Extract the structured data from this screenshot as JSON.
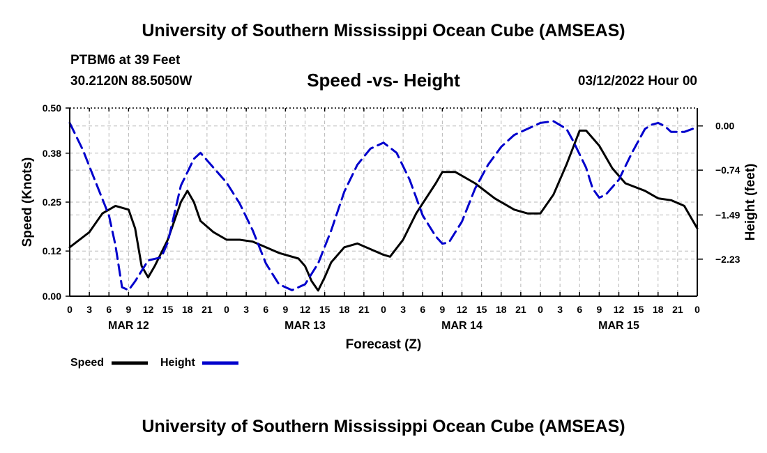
{
  "header": {
    "title": "University of Southern Mississippi Ocean Cube (AMSEAS)",
    "station": "PTBM6 at 39 Feet",
    "coords": "30.2120N  88.5050W",
    "subtitle": "Speed -vs- Height",
    "datetime": "03/12/2022 Hour 00"
  },
  "footer": {
    "title": "University of Southern Mississippi Ocean Cube (AMSEAS)"
  },
  "chart_data": {
    "type": "line",
    "title": "Speed -vs- Height",
    "xlabel": "Forecast (Z)",
    "ylabel_left": "Speed (Knots)",
    "ylabel_right": "Height (feet)",
    "x_unit": "forecast hour",
    "xlim": [
      0,
      96
    ],
    "x_ticks": [
      0,
      3,
      6,
      9,
      12,
      15,
      18,
      21,
      24,
      27,
      30,
      33,
      36,
      39,
      42,
      45,
      48,
      51,
      54,
      57,
      60,
      63,
      66,
      69,
      72,
      75,
      78,
      81,
      84,
      87,
      90,
      93,
      96
    ],
    "x_tick_labels": [
      "0",
      "3",
      "6",
      "9",
      "12",
      "15",
      "18",
      "21",
      "0",
      "3",
      "6",
      "9",
      "12",
      "15",
      "18",
      "21",
      "0",
      "3",
      "6",
      "9",
      "12",
      "15",
      "18",
      "21",
      "0",
      "3",
      "6",
      "9",
      "12",
      "15",
      "18",
      "21",
      "0"
    ],
    "day_labels": [
      {
        "label": "MAR 12",
        "hour": 9
      },
      {
        "label": "MAR 13",
        "hour": 36
      },
      {
        "label": "MAR 14",
        "hour": 60
      },
      {
        "label": "MAR 15",
        "hour": 84
      }
    ],
    "y_left": {
      "lim": [
        0,
        0.5
      ],
      "ticks": [
        0,
        0.12,
        0.25,
        0.38,
        0.5
      ],
      "tick_labels": [
        "0.00",
        "0.12",
        "0.25",
        "0.38",
        "0.50"
      ]
    },
    "y_right": {
      "lim": [
        -2.85,
        0.3
      ],
      "ticks": [
        0,
        -0.74,
        -1.49,
        -2.23
      ],
      "tick_labels": [
        "0.00",
        "−0.74",
        "−1.49",
        "−2.23"
      ]
    },
    "grid": true,
    "legend_position": "bottom-left",
    "series": [
      {
        "name": "Speed",
        "axis": "left",
        "color": "#000000",
        "style": "solid",
        "points": [
          [
            0,
            0.13
          ],
          [
            3,
            0.17
          ],
          [
            5,
            0.22
          ],
          [
            7,
            0.24
          ],
          [
            9,
            0.23
          ],
          [
            10,
            0.18
          ],
          [
            11,
            0.08
          ],
          [
            12,
            0.05
          ],
          [
            13,
            0.08
          ],
          [
            15,
            0.15
          ],
          [
            17,
            0.25
          ],
          [
            18,
            0.28
          ],
          [
            19,
            0.25
          ],
          [
            20,
            0.2
          ],
          [
            22,
            0.17
          ],
          [
            24,
            0.15
          ],
          [
            26,
            0.15
          ],
          [
            28,
            0.145
          ],
          [
            30,
            0.13
          ],
          [
            32,
            0.115
          ],
          [
            35,
            0.1
          ],
          [
            36,
            0.08
          ],
          [
            37,
            0.04
          ],
          [
            38,
            0.015
          ],
          [
            39,
            0.05
          ],
          [
            40,
            0.09
          ],
          [
            42,
            0.13
          ],
          [
            44,
            0.14
          ],
          [
            46,
            0.125
          ],
          [
            48,
            0.11
          ],
          [
            49,
            0.105
          ],
          [
            51,
            0.15
          ],
          [
            53,
            0.22
          ],
          [
            56,
            0.3
          ],
          [
            57,
            0.33
          ],
          [
            59,
            0.33
          ],
          [
            62,
            0.3
          ],
          [
            65,
            0.26
          ],
          [
            68,
            0.23
          ],
          [
            70,
            0.22
          ],
          [
            72,
            0.22
          ],
          [
            74,
            0.27
          ],
          [
            76,
            0.35
          ],
          [
            78,
            0.44
          ],
          [
            79,
            0.44
          ],
          [
            81,
            0.4
          ],
          [
            83,
            0.34
          ],
          [
            85,
            0.3
          ],
          [
            88,
            0.28
          ],
          [
            90,
            0.26
          ],
          [
            92,
            0.255
          ],
          [
            94,
            0.24
          ],
          [
            96,
            0.18
          ]
        ]
      },
      {
        "name": "Height",
        "axis": "right",
        "color": "#0000cc",
        "style": "dashed",
        "points": [
          [
            0,
            0.05
          ],
          [
            2,
            -0.4
          ],
          [
            4,
            -0.95
          ],
          [
            6,
            -1.5
          ],
          [
            7,
            -2.0
          ],
          [
            8,
            -2.7
          ],
          [
            9,
            -2.75
          ],
          [
            10,
            -2.6
          ],
          [
            12,
            -2.25
          ],
          [
            14,
            -2.2
          ],
          [
            15,
            -1.95
          ],
          [
            17,
            -1.0
          ],
          [
            19,
            -0.55
          ],
          [
            20,
            -0.45
          ],
          [
            22,
            -0.7
          ],
          [
            24,
            -0.95
          ],
          [
            26,
            -1.3
          ],
          [
            28,
            -1.75
          ],
          [
            30,
            -2.3
          ],
          [
            32,
            -2.65
          ],
          [
            34,
            -2.75
          ],
          [
            36,
            -2.65
          ],
          [
            38,
            -2.3
          ],
          [
            40,
            -1.75
          ],
          [
            42,
            -1.1
          ],
          [
            44,
            -0.65
          ],
          [
            46,
            -0.38
          ],
          [
            48,
            -0.28
          ],
          [
            50,
            -0.45
          ],
          [
            52,
            -0.9
          ],
          [
            54,
            -1.5
          ],
          [
            56,
            -1.85
          ],
          [
            57,
            -1.97
          ],
          [
            58,
            -1.95
          ],
          [
            60,
            -1.6
          ],
          [
            62,
            -1.05
          ],
          [
            64,
            -0.65
          ],
          [
            66,
            -0.35
          ],
          [
            68,
            -0.15
          ],
          [
            70,
            -0.05
          ],
          [
            72,
            0.05
          ],
          [
            74,
            0.08
          ],
          [
            76,
            -0.05
          ],
          [
            77,
            -0.25
          ],
          [
            79,
            -0.7
          ],
          [
            80,
            -1.05
          ],
          [
            81,
            -1.2
          ],
          [
            82,
            -1.15
          ],
          [
            84,
            -0.9
          ],
          [
            86,
            -0.45
          ],
          [
            88,
            -0.05
          ],
          [
            89,
            0.02
          ],
          [
            90,
            0.05
          ],
          [
            91,
            0.0
          ],
          [
            92,
            -0.1
          ],
          [
            94,
            -0.1
          ],
          [
            96,
            -0.02
          ]
        ]
      }
    ]
  }
}
